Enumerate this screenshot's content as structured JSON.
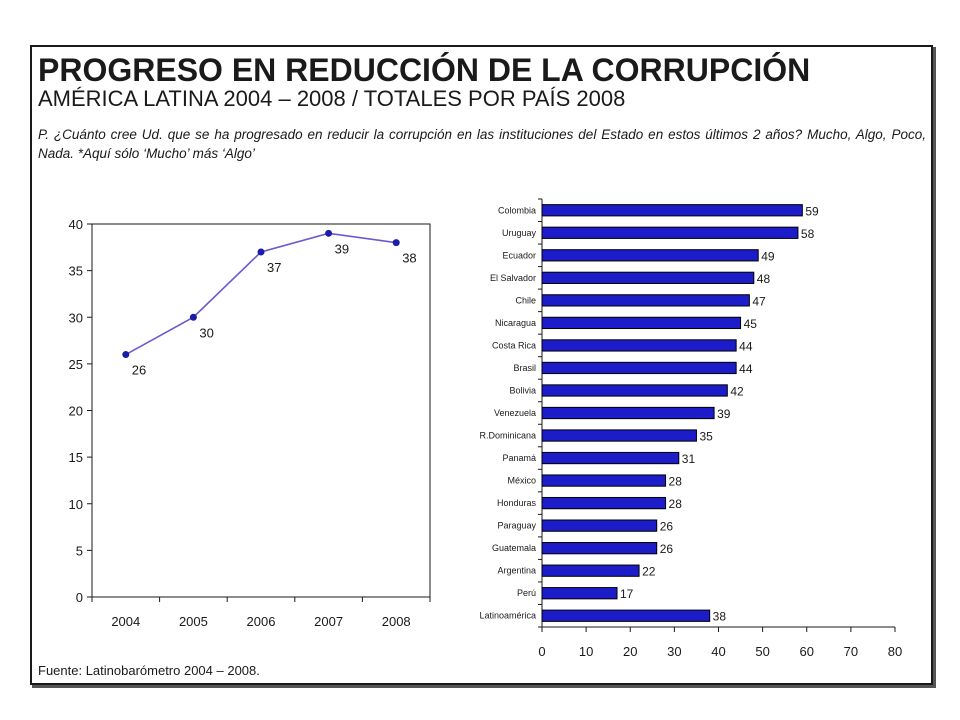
{
  "title": "PROGRESO EN REDUCCIÓN DE LA CORRUPCIÓN",
  "subtitle": "AMÉRICA LATINA 2004 – 2008 / TOTALES POR PAÍS 2008",
  "question": "P. ¿Cuánto cree Ud. que se ha progresado en reducir la corrupción en las instituciones del Estado en estos últimos 2 años? Mucho, Algo, Poco, Nada. *Aquí sólo ‘Mucho’ más ‘Algo’",
  "source": "Fuente: Latinobarómetro 2004 – 2008.",
  "colors": {
    "line": "#6a5acd",
    "marker": "#1c1ca8",
    "bar": "#1c1cc8",
    "bar_border": "#000000"
  },
  "chart_data": [
    {
      "type": "line",
      "x": [
        "2004",
        "2005",
        "2006",
        "2007",
        "2008"
      ],
      "values": [
        26,
        30,
        37,
        39,
        38
      ],
      "ylim": [
        0,
        40
      ],
      "yticks": [
        0,
        5,
        10,
        15,
        20,
        25,
        30,
        35,
        40
      ],
      "grid": false,
      "data_labels": true
    },
    {
      "type": "bar",
      "orientation": "horizontal",
      "categories": [
        "Colombia",
        "Uruguay",
        "Ecuador",
        "El Salvador",
        "Chile",
        "Nicaragua",
        "Costa Rica",
        "Brasil",
        "Bolivia",
        "Venezuela",
        "R.Dominicana",
        "Panamá",
        "México",
        "Honduras",
        "Paraguay",
        "Guatemala",
        "Argentina",
        "Perú",
        "Latinoamérica"
      ],
      "values": [
        59,
        58,
        49,
        48,
        47,
        45,
        44,
        44,
        42,
        39,
        35,
        31,
        28,
        28,
        26,
        26,
        22,
        17,
        38
      ],
      "xlim": [
        0,
        80
      ],
      "xticks": [
        0,
        10,
        20,
        30,
        40,
        50,
        60,
        70,
        80
      ],
      "grid": false,
      "data_labels": true
    }
  ]
}
